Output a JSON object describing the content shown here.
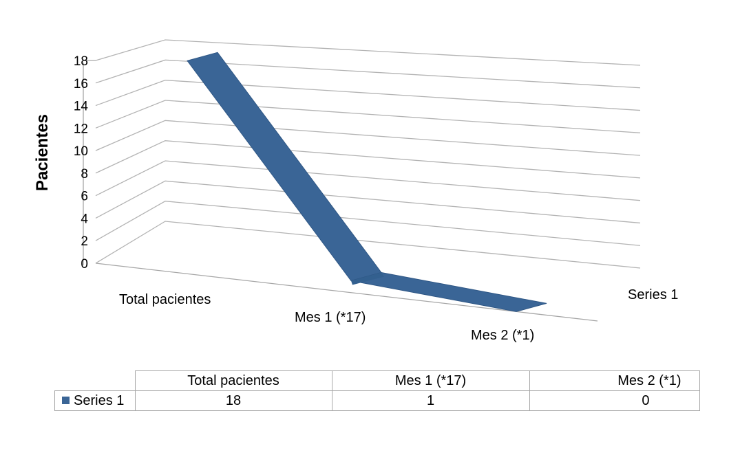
{
  "chart_data": {
    "type": "area",
    "style": "3d-ribbon",
    "categories": [
      "Total pacientes",
      "Mes 1 (*17)",
      "Mes 2 (*1)"
    ],
    "series": [
      {
        "name": "Series 1",
        "values": [
          18,
          1,
          0
        ]
      }
    ],
    "ylabel": "Pacientes",
    "ylim": [
      0,
      18
    ],
    "yticks": [
      "0",
      "2",
      "4",
      "6",
      "8",
      "10",
      "12",
      "14",
      "16",
      "18"
    ],
    "grid": true,
    "series_color": "#3a6596",
    "data_table": {
      "columns": [
        "Total pacientes",
        "Mes 1 (*17)",
        "Mes 2 (*1)"
      ],
      "rows": [
        {
          "label": "Series 1",
          "values": [
            "18",
            "1",
            "0"
          ]
        }
      ]
    }
  }
}
